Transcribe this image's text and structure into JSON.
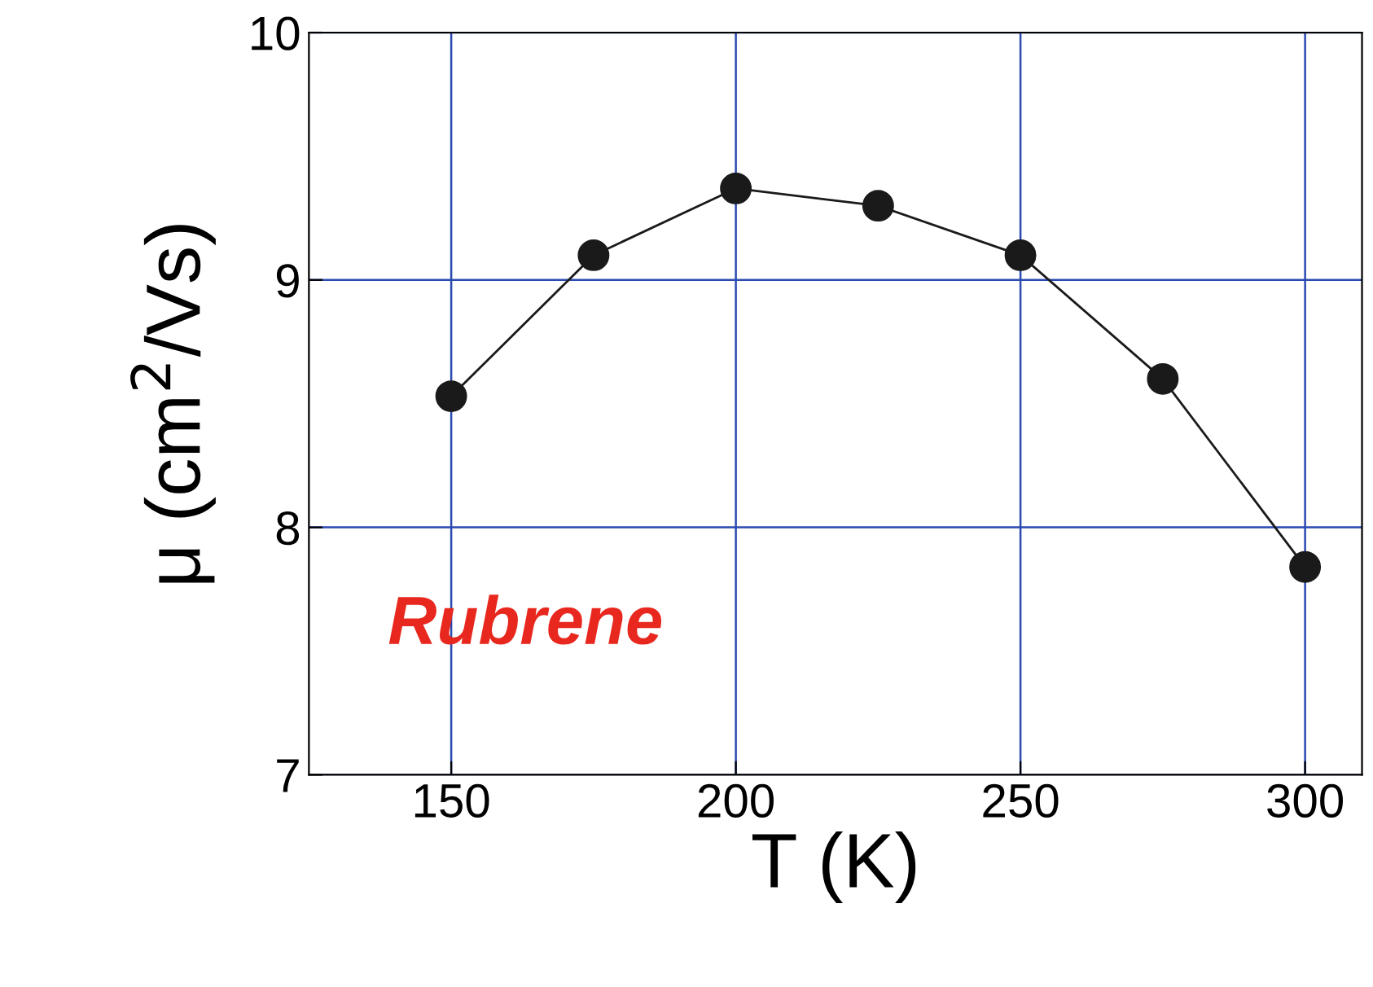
{
  "chart_data": {
    "type": "line",
    "xlabel": "T (K)",
    "ylabel": "μ (cm$^{2}$/Vs)",
    "x": [
      150,
      175,
      200,
      225,
      250,
      275,
      300
    ],
    "series": [
      {
        "color": "#1a1a1a",
        "values": [
          8.53,
          9.1,
          9.37,
          9.3,
          9.1,
          8.6,
          7.84
        ]
      }
    ],
    "marker": "circle",
    "line_style": "solid",
    "xlim": [
      125,
      310
    ],
    "xticks": [
      150,
      200,
      250,
      300
    ],
    "ylim": [
      7,
      10
    ],
    "yticks": [
      7,
      8,
      9,
      10
    ],
    "grid": true,
    "annotations": [
      "Rubrene"
    ]
  }
}
